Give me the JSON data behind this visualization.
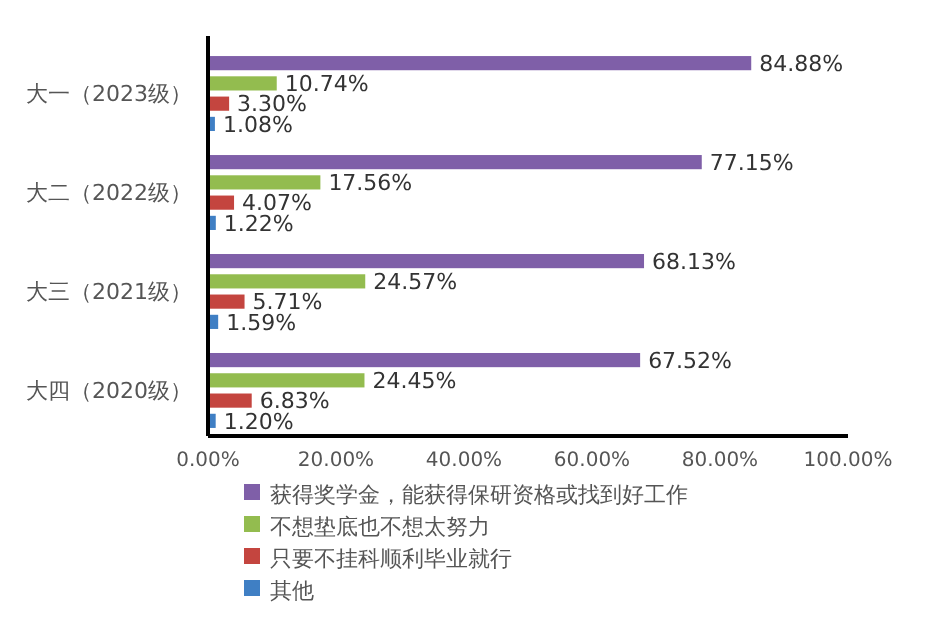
{
  "chart_data": {
    "type": "bar",
    "orientation": "horizontal",
    "categories": [
      "大一（2023级）",
      "大二（2022级）",
      "大三（2021级）",
      "大四（2020级）"
    ],
    "series": [
      {
        "name": "获得奖学金，能获得保研资格或找到好工作",
        "color": "#7f5fa8",
        "values": [
          84.88,
          77.15,
          68.13,
          67.52
        ],
        "value_labels": [
          "84.88%",
          "77.15%",
          "68.13%",
          "67.52%"
        ]
      },
      {
        "name": "不想垫底也不想太努力",
        "color": "#93bc4f",
        "values": [
          10.74,
          17.56,
          24.57,
          24.45
        ],
        "value_labels": [
          "10.74%",
          "17.56%",
          "24.57%",
          "24.45%"
        ]
      },
      {
        "name": "只要不挂科顺利毕业就行",
        "color": "#c4453f",
        "values": [
          3.3,
          4.07,
          5.71,
          6.83
        ],
        "value_labels": [
          "3.30%",
          "4.07%",
          "5.71%",
          "6.83%"
        ]
      },
      {
        "name": "其他",
        "color": "#3f7fc4",
        "values": [
          1.08,
          1.22,
          1.59,
          1.2
        ],
        "value_labels": [
          "1.08%",
          "1.22%",
          "1.59%",
          "1.20%"
        ]
      }
    ],
    "xlim": [
      0,
      100
    ],
    "xticks": [
      {
        "value": 0,
        "label": "0.00%"
      },
      {
        "value": 20,
        "label": "20.00%"
      },
      {
        "value": 40,
        "label": "40.00%"
      },
      {
        "value": 60,
        "label": "60.00%"
      },
      {
        "value": 80,
        "label": "80.00%"
      },
      {
        "value": 100,
        "label": "100.00%"
      }
    ],
    "grid": false,
    "legend": "bottom"
  }
}
